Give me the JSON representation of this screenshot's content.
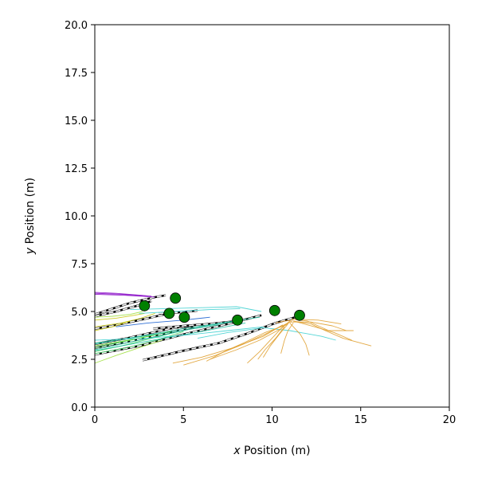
{
  "chart_data": {
    "type": "scatter",
    "title": "",
    "xlabel_var": "x",
    "xlabel_rest": " Position (m)",
    "ylabel_var": "y",
    "ylabel_rest": " Position (m)",
    "xlim": [
      0,
      20
    ],
    "ylim": [
      0,
      20
    ],
    "xticks": [
      0,
      5,
      10,
      15,
      20
    ],
    "yticks": [
      0.0,
      2.5,
      5.0,
      7.5,
      10.0,
      12.5,
      15.0,
      17.5,
      20.0
    ],
    "xtick_labels": [
      "0",
      "5",
      "10",
      "15",
      "20"
    ],
    "ytick_labels": [
      "0.0",
      "2.5",
      "5.0",
      "7.5",
      "10.0",
      "12.5",
      "15.0",
      "17.5",
      "20.0"
    ],
    "grid": false,
    "legend": "none",
    "agents": [
      {
        "x": 2.8,
        "y": 5.3
      },
      {
        "x": 4.55,
        "y": 5.7
      },
      {
        "x": 4.2,
        "y": 4.9
      },
      {
        "x": 5.05,
        "y": 4.7
      },
      {
        "x": 8.05,
        "y": 4.55
      },
      {
        "x": 10.15,
        "y": 5.05
      },
      {
        "x": 11.55,
        "y": 4.8
      }
    ],
    "agent_color": "#008000",
    "trajectories": [
      {
        "color": "#8b10c8",
        "points": [
          [
            0,
            5.95
          ],
          [
            1.5,
            5.9
          ],
          [
            2.8,
            5.8
          ],
          [
            3.4,
            5.75
          ]
        ]
      },
      {
        "color": "#8b10c8",
        "points": [
          [
            0,
            6.0
          ],
          [
            1.2,
            5.95
          ],
          [
            2.6,
            5.85
          ],
          [
            3.2,
            5.8
          ]
        ]
      },
      {
        "color": "#8b10c8",
        "points": [
          [
            0,
            5.9
          ],
          [
            1.6,
            5.85
          ],
          [
            3.0,
            5.78
          ]
        ]
      },
      {
        "color": "#c8c810",
        "points": [
          [
            0,
            4.55
          ],
          [
            1.2,
            4.65
          ],
          [
            2.2,
            4.8
          ],
          [
            2.8,
            4.9
          ]
        ]
      },
      {
        "color": "#c8c810",
        "points": [
          [
            0,
            4.2
          ],
          [
            1.5,
            4.4
          ],
          [
            2.6,
            4.65
          ],
          [
            3.4,
            4.9
          ]
        ]
      },
      {
        "color": "#c8c810",
        "points": [
          [
            0,
            4.0
          ],
          [
            1.0,
            4.2
          ],
          [
            2.0,
            4.5
          ]
        ]
      },
      {
        "color": "#a0e040",
        "points": [
          [
            0,
            4.7
          ],
          [
            1.0,
            4.75
          ],
          [
            2.0,
            4.85
          ],
          [
            2.7,
            5.0
          ]
        ]
      },
      {
        "color": "#a0e040",
        "points": [
          [
            0,
            2.3
          ],
          [
            1.2,
            2.7
          ],
          [
            2.5,
            3.1
          ],
          [
            3.8,
            3.5
          ]
        ]
      },
      {
        "color": "#40d060",
        "points": [
          [
            0,
            2.9
          ],
          [
            1.5,
            3.2
          ],
          [
            3.0,
            3.55
          ],
          [
            4.5,
            3.9
          ]
        ]
      },
      {
        "color": "#40d060",
        "points": [
          [
            0,
            3.1
          ],
          [
            2.0,
            3.5
          ],
          [
            4.0,
            3.9
          ]
        ]
      },
      {
        "color": "#40d060",
        "points": [
          [
            0,
            2.8
          ],
          [
            1.8,
            3.1
          ],
          [
            3.5,
            3.5
          ],
          [
            5.0,
            3.95
          ]
        ]
      },
      {
        "color": "#60e020",
        "points": [
          [
            0,
            3.2
          ],
          [
            2.2,
            3.55
          ],
          [
            4.3,
            3.95
          ]
        ]
      },
      {
        "color": "#20c0a0",
        "points": [
          [
            0,
            3.0
          ],
          [
            2.0,
            3.4
          ],
          [
            4.0,
            3.8
          ],
          [
            6.0,
            4.2
          ],
          [
            8.0,
            4.5
          ]
        ]
      },
      {
        "color": "#20c0a0",
        "points": [
          [
            0,
            3.3
          ],
          [
            2.5,
            3.7
          ],
          [
            5.0,
            4.1
          ],
          [
            7.5,
            4.45
          ],
          [
            9.3,
            4.7
          ]
        ]
      },
      {
        "color": "#20c0a0",
        "points": [
          [
            0,
            2.95
          ],
          [
            3.0,
            3.45
          ],
          [
            6.0,
            3.95
          ],
          [
            8.5,
            4.4
          ]
        ]
      },
      {
        "color": "#20b090",
        "points": [
          [
            0,
            3.35
          ],
          [
            2.0,
            3.6
          ],
          [
            4.5,
            3.95
          ],
          [
            7.0,
            4.3
          ]
        ]
      },
      {
        "color": "#1a60d0",
        "points": [
          [
            1.2,
            4.2
          ],
          [
            3.0,
            4.4
          ],
          [
            5.0,
            4.55
          ],
          [
            6.5,
            4.7
          ]
        ]
      },
      {
        "color": "#40d0d0",
        "points": [
          [
            2.0,
            5.1
          ],
          [
            4.0,
            5.15
          ],
          [
            6.0,
            5.2
          ],
          [
            8.0,
            5.25
          ],
          [
            9.4,
            5.0
          ]
        ]
      },
      {
        "color": "#40d0d0",
        "points": [
          [
            0,
            3.5
          ],
          [
            3.0,
            3.6
          ],
          [
            5.5,
            3.8
          ],
          [
            7.5,
            4.0
          ],
          [
            9.5,
            4.2
          ]
        ]
      },
      {
        "color": "#40d0d0",
        "points": [
          [
            5.8,
            3.6
          ],
          [
            7.5,
            3.9
          ],
          [
            9.5,
            4.15
          ],
          [
            11.0,
            4.0
          ],
          [
            12.8,
            3.7
          ],
          [
            13.6,
            3.5
          ]
        ]
      },
      {
        "color": "#40d0d0",
        "points": [
          [
            2.5,
            4.9
          ],
          [
            4.5,
            5.0
          ],
          [
            6.5,
            5.1
          ],
          [
            8.2,
            5.15
          ]
        ]
      },
      {
        "color": "#e0a030",
        "points": [
          [
            4.4,
            2.3
          ],
          [
            6.0,
            2.6
          ],
          [
            7.8,
            3.1
          ],
          [
            9.5,
            3.7
          ],
          [
            10.6,
            4.3
          ]
        ]
      },
      {
        "color": "#e0a030",
        "points": [
          [
            5.0,
            2.2
          ],
          [
            6.8,
            2.7
          ],
          [
            8.4,
            3.3
          ],
          [
            9.8,
            3.9
          ],
          [
            10.9,
            4.4
          ]
        ]
      },
      {
        "color": "#e0a030",
        "points": [
          [
            6.5,
            2.5
          ],
          [
            8.0,
            3.0
          ],
          [
            9.3,
            3.5
          ],
          [
            10.5,
            4.1
          ],
          [
            11.0,
            4.5
          ]
        ]
      },
      {
        "color": "#e0a030",
        "points": [
          [
            8.6,
            2.3
          ],
          [
            9.3,
            2.9
          ],
          [
            10.0,
            3.6
          ],
          [
            10.6,
            4.2
          ],
          [
            11.1,
            4.5
          ]
        ]
      },
      {
        "color": "#e0a030",
        "points": [
          [
            9.5,
            2.6
          ],
          [
            9.9,
            3.2
          ],
          [
            10.4,
            3.8
          ],
          [
            10.9,
            4.35
          ]
        ]
      },
      {
        "color": "#e0a030",
        "points": [
          [
            10.5,
            2.8
          ],
          [
            10.7,
            3.5
          ],
          [
            10.9,
            4.0
          ],
          [
            11.2,
            4.4
          ]
        ]
      },
      {
        "color": "#e0a030",
        "points": [
          [
            11.2,
            4.5
          ],
          [
            12.2,
            4.35
          ],
          [
            13.0,
            4.0
          ],
          [
            14.0,
            3.6
          ],
          [
            15.6,
            3.2
          ]
        ]
      },
      {
        "color": "#e0a030",
        "points": [
          [
            11.2,
            4.5
          ],
          [
            12.4,
            4.2
          ],
          [
            13.5,
            3.9
          ],
          [
            14.5,
            3.5
          ]
        ]
      },
      {
        "color": "#e0a030",
        "points": [
          [
            11.1,
            4.6
          ],
          [
            12.0,
            4.5
          ],
          [
            13.2,
            4.0
          ],
          [
            14.6,
            4.0
          ]
        ]
      },
      {
        "color": "#e0a030",
        "points": [
          [
            11.0,
            4.4
          ],
          [
            11.6,
            3.8
          ],
          [
            11.9,
            3.3
          ],
          [
            12.1,
            2.7
          ]
        ]
      },
      {
        "color": "#e0a030",
        "points": [
          [
            11.0,
            4.45
          ],
          [
            12.2,
            4.45
          ],
          [
            13.4,
            4.25
          ],
          [
            14.2,
            4.0
          ]
        ]
      },
      {
        "color": "#e0a030",
        "points": [
          [
            10.8,
            4.3
          ],
          [
            9.6,
            3.9
          ],
          [
            8.5,
            3.4
          ],
          [
            7.3,
            2.9
          ],
          [
            6.3,
            2.4
          ]
        ]
      },
      {
        "color": "#e0a030",
        "points": [
          [
            10.7,
            4.2
          ],
          [
            10.2,
            3.6
          ],
          [
            9.6,
            3.0
          ],
          [
            9.2,
            2.5
          ]
        ]
      },
      {
        "color": "#e0a030",
        "points": [
          [
            11.3,
            4.6
          ],
          [
            12.6,
            4.55
          ],
          [
            13.9,
            4.35
          ]
        ]
      },
      {
        "color": "#d08820",
        "points": [
          [
            10.2,
            4.4
          ],
          [
            10.7,
            4.5
          ],
          [
            11.2,
            4.55
          ]
        ]
      }
    ],
    "reference_paths": [
      {
        "points": [
          [
            0,
            4.85
          ],
          [
            1.0,
            5.15
          ],
          [
            2.0,
            5.45
          ],
          [
            3.4,
            5.75
          ],
          [
            4.0,
            5.85
          ]
        ]
      },
      {
        "points": [
          [
            0,
            4.75
          ],
          [
            1.2,
            5.0
          ],
          [
            2.4,
            5.3
          ],
          [
            3.2,
            5.55
          ]
        ]
      },
      {
        "points": [
          [
            0,
            4.1
          ],
          [
            1.0,
            4.25
          ],
          [
            2.0,
            4.45
          ],
          [
            3.0,
            4.65
          ],
          [
            4.2,
            4.9
          ]
        ]
      },
      {
        "points": [
          [
            0,
            3.3
          ],
          [
            1.8,
            3.6
          ],
          [
            3.0,
            3.85
          ],
          [
            4.2,
            4.1
          ],
          [
            5.3,
            4.25
          ]
        ]
      },
      {
        "points": [
          [
            0,
            3.1
          ],
          [
            2.0,
            3.45
          ],
          [
            4.2,
            3.9
          ],
          [
            5.6,
            4.2
          ]
        ]
      },
      {
        "points": [
          [
            0,
            2.75
          ],
          [
            2.5,
            3.2
          ],
          [
            5.0,
            3.8
          ],
          [
            7.5,
            4.35
          ],
          [
            9.4,
            4.8
          ]
        ]
      },
      {
        "points": [
          [
            2.7,
            2.45
          ],
          [
            5.0,
            2.95
          ],
          [
            7.0,
            3.35
          ],
          [
            8.6,
            3.85
          ],
          [
            10.2,
            4.4
          ],
          [
            11.3,
            4.7
          ]
        ]
      },
      {
        "points": [
          [
            3.3,
            4.1
          ],
          [
            5.0,
            4.25
          ],
          [
            6.5,
            4.35
          ],
          [
            8.0,
            4.5
          ]
        ]
      },
      {
        "points": [
          [
            3.6,
            4.9
          ],
          [
            4.7,
            4.95
          ],
          [
            5.8,
            5.05
          ]
        ]
      }
    ]
  }
}
